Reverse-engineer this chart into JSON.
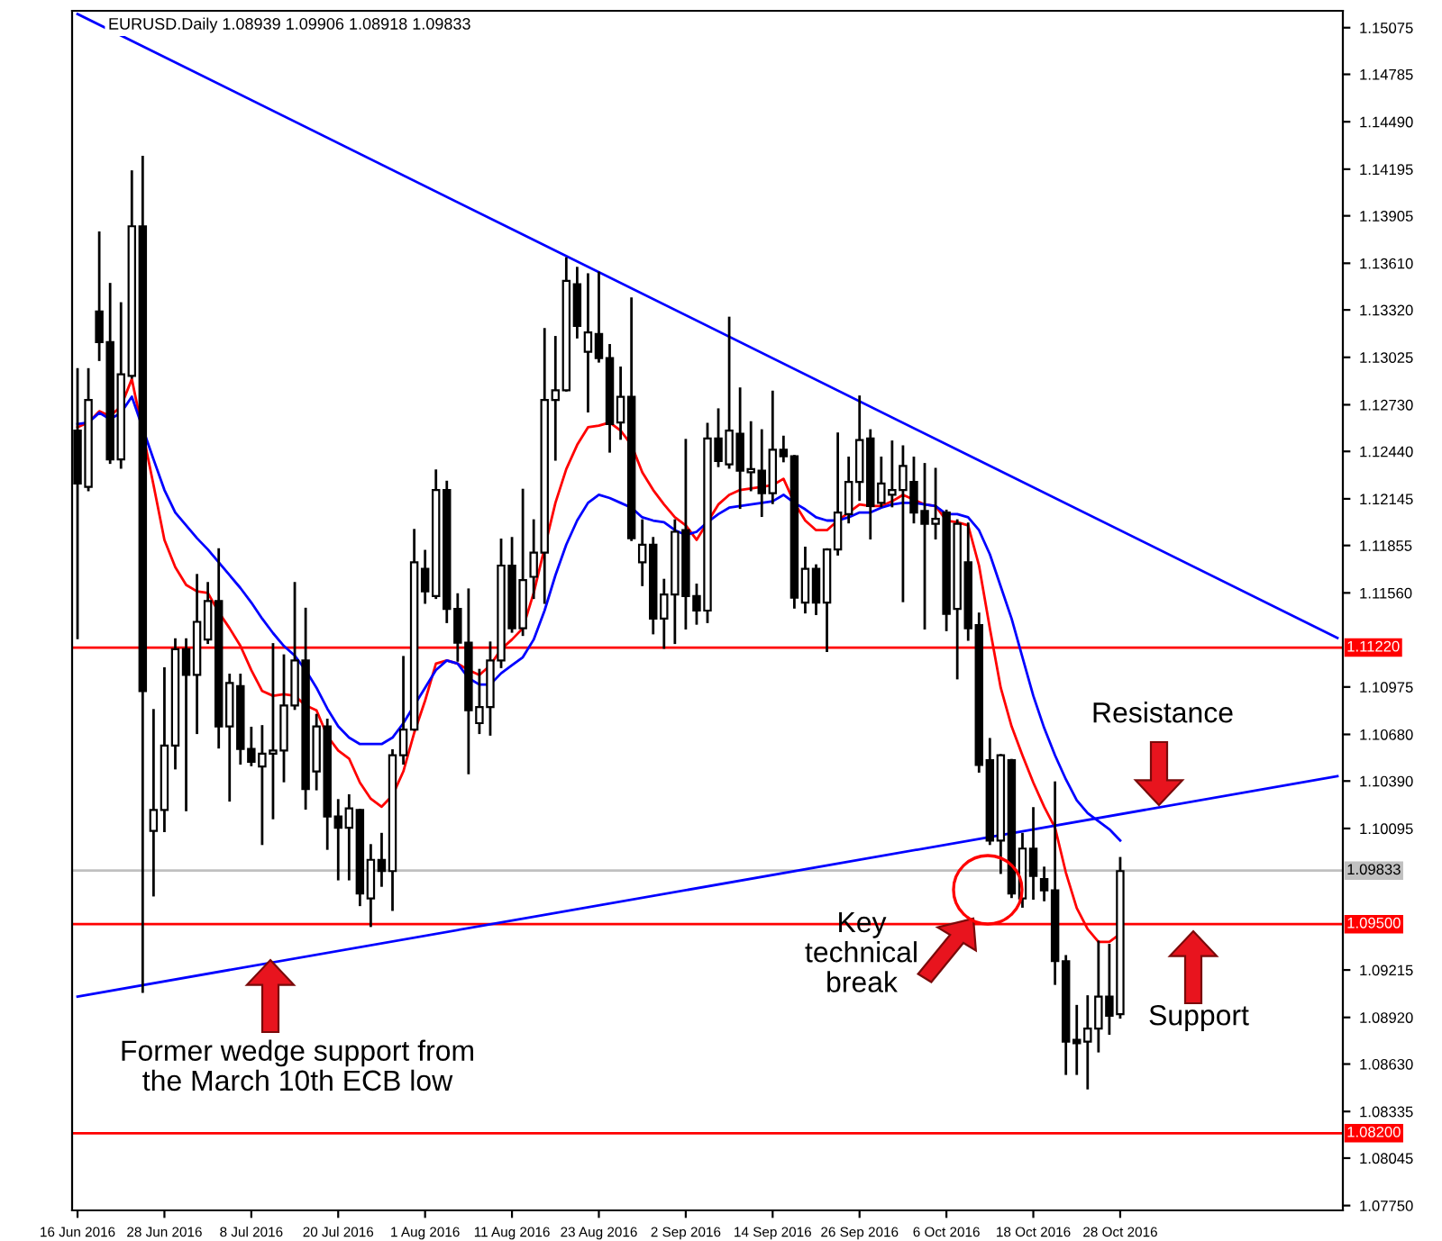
{
  "chart_data": {
    "type": "candlestick",
    "title": "EURUSD.Daily 1.08939 1.09906 1.08918 1.09833",
    "categories": [
      "16 Jun 2016",
      null,
      null,
      null,
      null,
      null,
      null,
      null,
      "28 Jun 2016",
      null,
      null,
      null,
      null,
      null,
      null,
      null,
      "8 Jul 2016",
      null,
      null,
      null,
      null,
      null,
      null,
      null,
      "20 Jul 2016",
      null,
      null,
      null,
      null,
      null,
      null,
      null,
      "1 Aug 2016",
      null,
      null,
      null,
      null,
      null,
      null,
      null,
      "11 Aug 2016",
      null,
      null,
      null,
      null,
      null,
      null,
      null,
      "23 Aug 2016",
      null,
      null,
      null,
      null,
      null,
      null,
      null,
      "2 Sep 2016",
      null,
      null,
      null,
      null,
      null,
      null,
      null,
      "14 Sep 2016",
      null,
      null,
      null,
      null,
      null,
      null,
      null,
      "26 Sep 2016",
      null,
      null,
      null,
      null,
      null,
      null,
      null,
      "6 Oct 2016",
      null,
      null,
      null,
      null,
      null,
      null,
      null,
      "18 Oct 2016",
      null,
      null,
      null,
      null,
      null,
      null,
      null,
      "28 Oct 2016",
      null,
      null,
      null,
      null,
      null,
      null,
      null,
      null,
      null,
      null,
      null,
      null,
      null,
      null,
      null,
      null,
      null,
      null,
      null,
      null
    ],
    "ohlc": [
      [
        1.1257,
        1.1295,
        1.1128,
        1.1224
      ],
      [
        1.1222,
        1.1295,
        1.122,
        1.1276
      ],
      [
        1.1331,
        1.138,
        1.1301,
        1.1312
      ],
      [
        1.1312,
        1.1348,
        1.1237,
        1.1239
      ],
      [
        1.1239,
        1.1336,
        1.1234,
        1.1292
      ],
      [
        1.1291,
        1.1418,
        1.129,
        1.1384
      ],
      [
        1.1384,
        1.1427,
        1.0908,
        1.1095
      ],
      [
        1.1008,
        1.1083,
        1.0968,
        1.1021
      ],
      [
        1.1021,
        1.1109,
        1.1008,
        1.1061
      ],
      [
        1.1061,
        1.1127,
        1.1047,
        1.1121
      ],
      [
        1.1121,
        1.1127,
        1.1021,
        1.1105
      ],
      [
        1.1105,
        1.1167,
        1.1069,
        1.1138
      ],
      [
        1.1127,
        1.1162,
        1.1125,
        1.1151
      ],
      [
        1.1151,
        1.1183,
        1.106,
        1.1073
      ],
      [
        1.1073,
        1.1105,
        1.1027,
        1.11
      ],
      [
        1.1098,
        1.1105,
        1.105,
        1.1059
      ],
      [
        1.1059,
        1.1072,
        1.1049,
        1.1051
      ],
      [
        1.1048,
        1.1073,
        1.1,
        1.1056
      ],
      [
        1.1056,
        1.1124,
        1.1016,
        1.1058
      ],
      [
        1.1058,
        1.1117,
        1.1039,
        1.1086
      ],
      [
        1.1086,
        1.1162,
        1.1084,
        1.1114
      ],
      [
        1.1114,
        1.1146,
        1.1022,
        1.1034
      ],
      [
        1.1045,
        1.108,
        1.1034,
        1.1073
      ],
      [
        1.1073,
        1.1077,
        1.0997,
        1.1017
      ],
      [
        1.1017,
        1.1027,
        1.0978,
        1.101
      ],
      [
        1.101,
        1.103,
        1.0978,
        1.1022
      ],
      [
        1.1021,
        1.1021,
        1.0962,
        1.0969
      ],
      [
        1.0966,
        1.0999,
        1.0949,
        1.099
      ],
      [
        1.099,
        1.1006,
        1.0974,
        1.0983
      ],
      [
        1.0983,
        1.1058,
        1.0959,
        1.1055
      ],
      [
        1.1055,
        1.1116,
        1.105,
        1.1071
      ],
      [
        1.1071,
        1.1195,
        1.1071,
        1.1175
      ],
      [
        1.1171,
        1.1182,
        1.115,
        1.1157
      ],
      [
        1.1154,
        1.1232,
        1.1153,
        1.122
      ],
      [
        1.122,
        1.1225,
        1.1138,
        1.1146
      ],
      [
        1.1146,
        1.1155,
        1.1114,
        1.1125
      ],
      [
        1.1125,
        1.1158,
        1.1044,
        1.1083
      ],
      [
        1.1075,
        1.1108,
        1.1069,
        1.1085
      ],
      [
        1.1085,
        1.1125,
        1.1068,
        1.1114
      ],
      [
        1.1114,
        1.1189,
        1.111,
        1.1173
      ],
      [
        1.1173,
        1.119,
        1.1132,
        1.1134
      ],
      [
        1.1134,
        1.122,
        1.113,
        1.1164
      ],
      [
        1.1166,
        1.1201,
        1.1153,
        1.1181
      ],
      [
        1.1181,
        1.132,
        1.115,
        1.1276
      ],
      [
        1.1276,
        1.1315,
        1.1239,
        1.1282
      ],
      [
        1.1282,
        1.1364,
        1.1282,
        1.135
      ],
      [
        1.1348,
        1.1358,
        1.1315,
        1.1322
      ],
      [
        1.1306,
        1.1354,
        1.1269,
        1.1318
      ],
      [
        1.1317,
        1.1355,
        1.13,
        1.1302
      ],
      [
        1.1302,
        1.131,
        1.1244,
        1.1261
      ],
      [
        1.1262,
        1.1296,
        1.1252,
        1.1278
      ],
      [
        1.1278,
        1.1339,
        1.1189,
        1.119
      ],
      [
        1.1175,
        1.1201,
        1.1161,
        1.1186
      ],
      [
        1.1186,
        1.119,
        1.1131,
        1.114
      ],
      [
        1.114,
        1.1164,
        1.1122,
        1.1155
      ],
      [
        1.1155,
        1.1201,
        1.1125,
        1.1194
      ],
      [
        1.1195,
        1.1251,
        1.1134,
        1.1154
      ],
      [
        1.1154,
        1.1161,
        1.1137,
        1.1145
      ],
      [
        1.1145,
        1.1261,
        1.1138,
        1.1252
      ],
      [
        1.1252,
        1.127,
        1.1235,
        1.1238
      ],
      [
        1.1236,
        1.1327,
        1.1234,
        1.1257
      ],
      [
        1.1255,
        1.1283,
        1.1209,
        1.1232
      ],
      [
        1.1231,
        1.1262,
        1.122,
        1.1233
      ],
      [
        1.1232,
        1.1257,
        1.1204,
        1.1218
      ],
      [
        1.1218,
        1.1281,
        1.1212,
        1.1245
      ],
      [
        1.1245,
        1.1253,
        1.1238,
        1.1241
      ],
      [
        1.1241,
        1.1241,
        1.1147,
        1.1153
      ],
      [
        1.115,
        1.1184,
        1.1144,
        1.1171
      ],
      [
        1.1171,
        1.1173,
        1.1143,
        1.115
      ],
      [
        1.115,
        1.1183,
        1.112,
        1.1183
      ],
      [
        1.1183,
        1.1255,
        1.118,
        1.1206
      ],
      [
        1.1205,
        1.124,
        1.12,
        1.1225
      ],
      [
        1.1225,
        1.1278,
        1.1214,
        1.1251
      ],
      [
        1.1252,
        1.1257,
        1.119,
        1.121
      ],
      [
        1.1212,
        1.124,
        1.121,
        1.1224
      ],
      [
        1.1217,
        1.125,
        1.121,
        1.122
      ],
      [
        1.122,
        1.1247,
        1.1151,
        1.1235
      ],
      [
        1.1225,
        1.124,
        1.12,
        1.1206
      ],
      [
        1.1207,
        1.1236,
        1.1134,
        1.1199
      ],
      [
        1.1199,
        1.1233,
        1.119,
        1.1202
      ],
      [
        1.1206,
        1.1207,
        1.1133,
        1.1143
      ],
      [
        1.1146,
        1.1201,
        1.1103,
        1.1199
      ],
      [
        1.1175,
        1.1199,
        1.1127,
        1.1134
      ],
      [
        1.1136,
        1.1143,
        1.1045,
        1.1049
      ],
      [
        1.1052,
        1.1065,
        1.1,
        1.1002
      ],
      [
        1.1002,
        1.1055,
        1.0982,
        1.1055
      ],
      [
        1.1052,
        1.1052,
        1.0967,
        1.0969
      ],
      [
        1.0966,
        1.1006,
        1.0961,
        1.0997
      ],
      [
        1.0997,
        1.1022,
        1.0966,
        1.098
      ],
      [
        1.0978,
        1.0985,
        1.0965,
        1.0971
      ],
      [
        1.0971,
        1.1038,
        1.0913,
        1.0927
      ],
      [
        1.0927,
        1.093,
        1.0857,
        1.0877
      ],
      [
        1.0878,
        1.0899,
        1.0857,
        1.0876
      ],
      [
        1.0877,
        1.0905,
        1.0848,
        1.0885
      ],
      [
        1.0885,
        1.0939,
        1.0871,
        1.0905
      ],
      [
        1.0905,
        1.0937,
        1.0882,
        1.0893
      ],
      [
        1.0894,
        1.0991,
        1.0892,
        1.0983
      ],
      null,
      null,
      null,
      null,
      null,
      null,
      null,
      null,
      null,
      null,
      null,
      null,
      null,
      null,
      null,
      null,
      null,
      null,
      null,
      null
    ],
    "series": [
      {
        "type": "line",
        "color": "#ff0000",
        "values": [
          1.1259,
          1.1262,
          1.1269,
          1.1266,
          1.1272,
          1.1289,
          null,
          1.1223,
          1.1189,
          1.1172,
          1.1161,
          1.1157,
          1.1156,
          1.1144,
          1.1134,
          1.1123,
          1.1108,
          1.1095,
          1.1092,
          1.1093,
          1.1092,
          1.1086,
          1.1083,
          1.1067,
          1.1058,
          1.1053,
          1.1038,
          1.1028,
          1.1023,
          1.103,
          1.1045,
          1.1069,
          1.1089,
          1.1112,
          1.1114,
          1.1112,
          1.1108,
          1.1105,
          1.1111,
          1.1121,
          1.1127,
          1.1134,
          1.1156,
          null,
          1.1212,
          1.1233,
          1.1248,
          1.1259,
          1.126,
          1.1262,
          1.1257,
          1.1248,
          1.1231,
          1.122,
          1.1211,
          1.1203,
          1.1198,
          1.1189,
          1.12,
          1.1211,
          1.1217,
          1.122,
          1.1221,
          1.1222,
          1.1223,
          1.1227,
          1.1212,
          1.1201,
          1.1195,
          1.1195,
          1.1201,
          1.1206,
          1.1211,
          1.121,
          1.121,
          1.1213,
          1.1217,
          1.1214,
          1.1211,
          1.121,
          1.1201,
          1.12,
          1.1198,
          1.1173,
          1.1134,
          1.1097,
          1.1073,
          1.1055,
          1.1038,
          1.1023,
          1.101,
          1.0982,
          1.096,
          1.0947,
          1.0939,
          1.0939,
          1.0944,
          null,
          null,
          null,
          null,
          null,
          null,
          null,
          null,
          null,
          null,
          null,
          null,
          null,
          null,
          null,
          null,
          null,
          null,
          null,
          null
        ]
      },
      {
        "type": "line",
        "color": "#0000ff",
        "values": [
          1.1261,
          1.1262,
          1.1268,
          1.1264,
          1.1268,
          1.1278,
          null,
          1.1239,
          1.122,
          1.1206,
          1.1198,
          1.119,
          1.1183,
          1.1175,
          1.1167,
          1.1159,
          1.115,
          1.114,
          1.1131,
          1.1123,
          1.1117,
          1.1108,
          1.1097,
          1.1084,
          1.1073,
          1.1066,
          1.1062,
          1.1062,
          1.1062,
          1.1066,
          1.1075,
          1.1086,
          1.1097,
          1.1108,
          1.1114,
          1.1112,
          1.1103,
          1.1099,
          1.1099,
          1.1106,
          1.1111,
          1.1116,
          1.1127,
          1.1145,
          1.1167,
          1.1186,
          1.1201,
          1.1212,
          1.1217,
          1.1215,
          1.1212,
          1.1209,
          1.1203,
          1.1201,
          1.12,
          1.1195,
          1.1192,
          1.1194,
          1.12,
          1.1205,
          1.1209,
          1.121,
          1.1211,
          1.1212,
          1.1213,
          1.1217,
          1.1212,
          1.1208,
          1.1203,
          1.1201,
          1.1201,
          1.1203,
          1.1206,
          1.1206,
          1.1209,
          1.1211,
          1.1212,
          1.1212,
          1.1211,
          1.121,
          1.1205,
          1.1205,
          1.1203,
          1.1195,
          1.118,
          1.116,
          1.114,
          1.1116,
          1.1092,
          1.1072,
          1.1055,
          1.104,
          1.1027,
          1.1019,
          1.1014,
          1.1009,
          1.1002,
          null,
          null,
          null,
          null,
          null,
          null,
          null,
          null,
          null,
          null,
          null,
          null,
          null,
          null,
          null,
          null,
          null,
          null,
          null,
          null
        ]
      },
      {
        "type": "line",
        "color": "#0000ff",
        "values": [
          1.1516,
          null,
          null,
          null,
          null,
          null,
          null,
          null,
          null,
          null,
          null,
          null,
          null,
          null,
          null,
          null,
          null,
          null,
          null,
          null,
          null,
          null,
          null,
          null,
          null,
          null,
          null,
          null,
          null,
          null,
          null,
          null,
          null,
          null,
          null,
          null,
          null,
          null,
          null,
          null,
          null,
          null,
          null,
          null,
          null,
          null,
          null,
          null,
          null,
          null,
          null,
          null,
          null,
          null,
          null,
          null,
          null,
          null,
          null,
          null,
          null,
          null,
          null,
          null,
          null,
          null,
          null,
          null,
          null,
          null,
          null,
          null,
          null,
          null,
          null,
          null,
          null,
          null,
          null,
          null,
          null,
          null,
          null,
          null,
          null,
          null,
          null,
          null,
          null,
          null,
          null,
          null,
          null,
          null,
          null,
          null,
          null,
          null,
          null,
          null,
          null,
          null,
          null,
          null,
          null,
          null,
          null,
          null,
          null,
          null,
          null,
          null,
          null,
          null,
          null,
          null,
          1.1128
        ]
      },
      {
        "type": "line",
        "color": "#0000ff",
        "values": [
          1.0905,
          null,
          null,
          null,
          null,
          null,
          null,
          null,
          null,
          null,
          null,
          null,
          null,
          null,
          null,
          null,
          null,
          null,
          null,
          null,
          null,
          null,
          null,
          null,
          null,
          null,
          null,
          null,
          null,
          null,
          null,
          null,
          null,
          null,
          null,
          null,
          null,
          null,
          null,
          null,
          null,
          null,
          null,
          null,
          null,
          null,
          null,
          null,
          null,
          null,
          null,
          null,
          null,
          null,
          null,
          null,
          null,
          null,
          null,
          null,
          null,
          null,
          null,
          null,
          null,
          null,
          null,
          null,
          null,
          null,
          null,
          null,
          null,
          null,
          null,
          null,
          null,
          null,
          null,
          null,
          null,
          null,
          null,
          null,
          null,
          null,
          null,
          null,
          null,
          null,
          null,
          null,
          null,
          null,
          null,
          null,
          null,
          null,
          null,
          null,
          null,
          null,
          null,
          null,
          null,
          null,
          null,
          null,
          null,
          null,
          null,
          null,
          null,
          null,
          null,
          null,
          1.1042
        ]
      }
    ],
    "ylim": [
      1.0772,
      1.1518
    ],
    "yticks": [
      1.15075,
      1.14785,
      {
        "value": 1.1449,
        "label": "1.14490"
      },
      1.14195,
      1.13905,
      {
        "value": 1.1361,
        "label": "1.13610"
      },
      {
        "value": 1.1332,
        "label": "1.13320"
      },
      1.13025,
      {
        "value": 1.1273,
        "label": "1.12730"
      },
      {
        "value": 1.1244,
        "label": "1.12440"
      },
      1.12145,
      1.11855,
      {
        "value": 1.1156,
        "label": "1.11560"
      },
      1.10975,
      {
        "value": 1.1068,
        "label": "1.10680"
      },
      {
        "value": 1.1039,
        "label": "1.10390"
      },
      1.10095,
      1.09215,
      {
        "value": 1.0892,
        "label": "1.08920"
      },
      {
        "value": 1.0863,
        "label": "1.08630"
      },
      1.08335,
      1.08045,
      {
        "value": 1.0775,
        "label": "1.07750"
      }
    ],
    "ref_lines": [
      {
        "axis": "y",
        "value": 1.1122,
        "label": "1.11220",
        "color": "#ff0000"
      },
      {
        "axis": "y",
        "value": 1.09833,
        "label": "1.09833",
        "color": "#c0c0c0"
      },
      {
        "axis": "y",
        "value": 1.095,
        "label": "1.09500",
        "color": "#ff0000"
      },
      {
        "axis": "y",
        "value": 1.082,
        "label": "1.08200",
        "color": "#ff0000"
      }
    ],
    "annotations": [
      "Resistance",
      "Key\ntechnical\nbreak",
      "Support",
      "Former wedge support from\nthe March 10th ECB low"
    ],
    "grid": false,
    "legend": false
  }
}
